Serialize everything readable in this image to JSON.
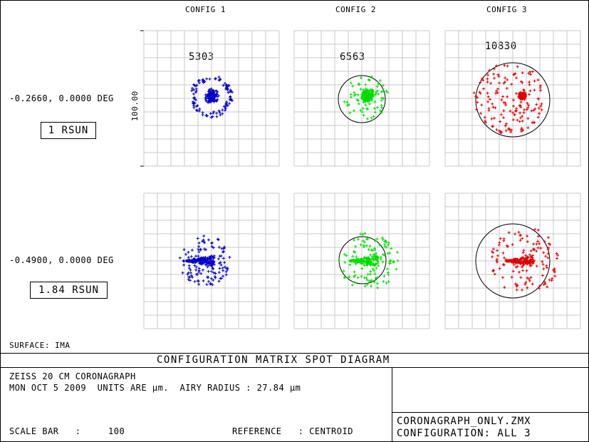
{
  "headers": [
    "CONFIG 1",
    "CONFIG 2",
    "CONFIG 3"
  ],
  "wavelength_labels": [
    "5303",
    "6563",
    "10830"
  ],
  "field_labels": [
    "-0.2660, 0.0000 DEG",
    "-0.4900, 0.0000 DEG"
  ],
  "field_boxes": [
    "1 RSUN",
    "1.84 RSUN"
  ],
  "scale_label": "100.00",
  "surface": "SURFACE: IMA",
  "title": "CONFIGURATION MATRIX SPOT DIAGRAM",
  "info": {
    "line1": "ZEISS 20 CM CORONAGRAPH",
    "line2": "MON OCT 5 2009  UNITS ARE µm.  AIRY RADIUS : 27.84 µm",
    "scale_bar": "SCALE BAR   :     100",
    "reference": "REFERENCE   : CENTROID",
    "file": "CORONAGRAPH_ONLY.ZMX",
    "configuration": "CONFIGURATION: ALL 3"
  },
  "colors": {
    "config1": "#0000c8",
    "config2": "#00dd00",
    "config3": "#e00000",
    "grid": "#c8c8c8"
  },
  "spots": [
    [
      {
        "shape": "ring"
      },
      {
        "shape": "blob"
      },
      {
        "shape": "core"
      }
    ],
    [
      {
        "shape": "comet"
      },
      {
        "shape": "comet"
      },
      {
        "shape": "comet"
      }
    ]
  ]
}
